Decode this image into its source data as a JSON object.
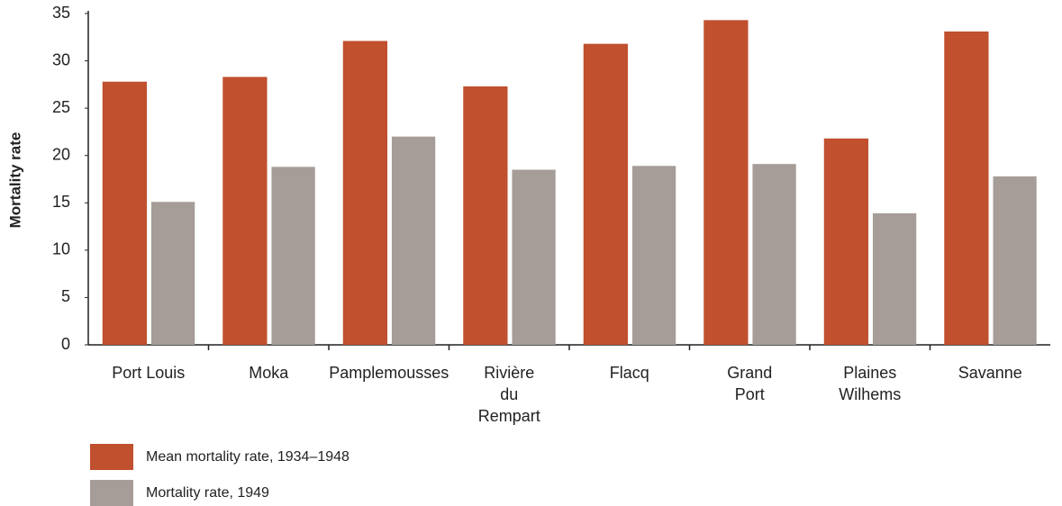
{
  "chart_data": {
    "type": "bar",
    "y_label": "Mortality rate",
    "categories": [
      "Port Louis",
      "Moka",
      "Pamplemousses",
      "Rivière\ndu\nRempart",
      "Flacq",
      "Grand\nPort",
      "Plaines\nWilhems",
      "Savanne"
    ],
    "series": [
      {
        "name": "Mean mortality rate, 1934–1948",
        "color": "#c0502e",
        "values": [
          27.8,
          28.3,
          32.1,
          27.3,
          31.8,
          34.3,
          21.8,
          33.1
        ]
      },
      {
        "name": "Mortality rate, 1949",
        "color": "#a69d98",
        "values": [
          15.1,
          18.8,
          22.0,
          18.5,
          18.9,
          19.1,
          13.9,
          17.8
        ]
      }
    ],
    "ylim": [
      0,
      35
    ],
    "yticks": [
      0,
      5,
      10,
      15,
      20,
      25,
      30,
      35
    ]
  }
}
